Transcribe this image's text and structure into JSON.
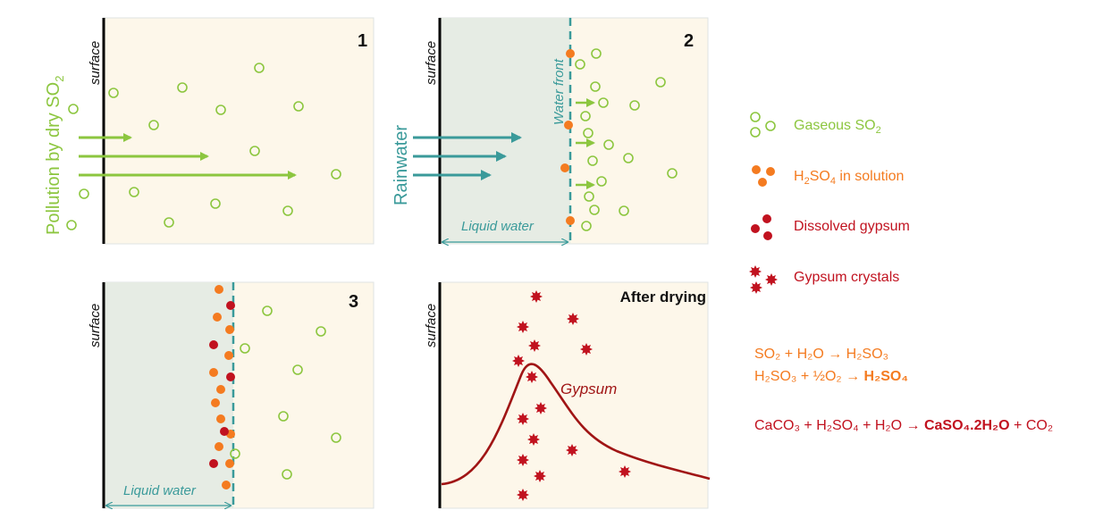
{
  "colors": {
    "green": "#8cc63f",
    "orange": "#f47b20",
    "red": "#c1121f",
    "darkred": "#a01515",
    "teal": "#3a9a9a",
    "panel_bg": "#fdf7ea",
    "water_bg": "#e6ece4"
  },
  "panels": {
    "p1": {
      "number": "1",
      "surface": "surface",
      "side_label": "Pollution by dry SO",
      "side_label_sub": "2"
    },
    "p2": {
      "number": "2",
      "surface": "surface",
      "side_label": "Rainwater",
      "front_label": "Water front",
      "water_label": "Liquid water"
    },
    "p3": {
      "number": "3",
      "surface": "surface",
      "water_label": "Liquid water"
    },
    "p4": {
      "number": "After drying",
      "surface": "surface",
      "curve_label": "Gypsum"
    }
  },
  "legend": {
    "gaseous": {
      "text": "Gaseous SO",
      "sub": "2"
    },
    "h2so4": {
      "pre": "H",
      "sub1": "2",
      "mid": "SO",
      "sub2": "4",
      "post": " in solution"
    },
    "dissolved": {
      "text": "Dissolved gypsum"
    },
    "crystals": {
      "text": "Gypsum crystals"
    }
  },
  "equations": {
    "eq1": "SO₂ + H₂O → H₂SO₃",
    "eq2_plain": "H₂SO₃ + ½O₂ → ",
    "eq2_bold": "H₂SO₄",
    "eq3_plain": "CaCO₃ + H₂SO₄ + H₂O → ",
    "eq3_bold": "CaSO₄.2H₂O",
    "eq3_tail": " + CO₂"
  }
}
